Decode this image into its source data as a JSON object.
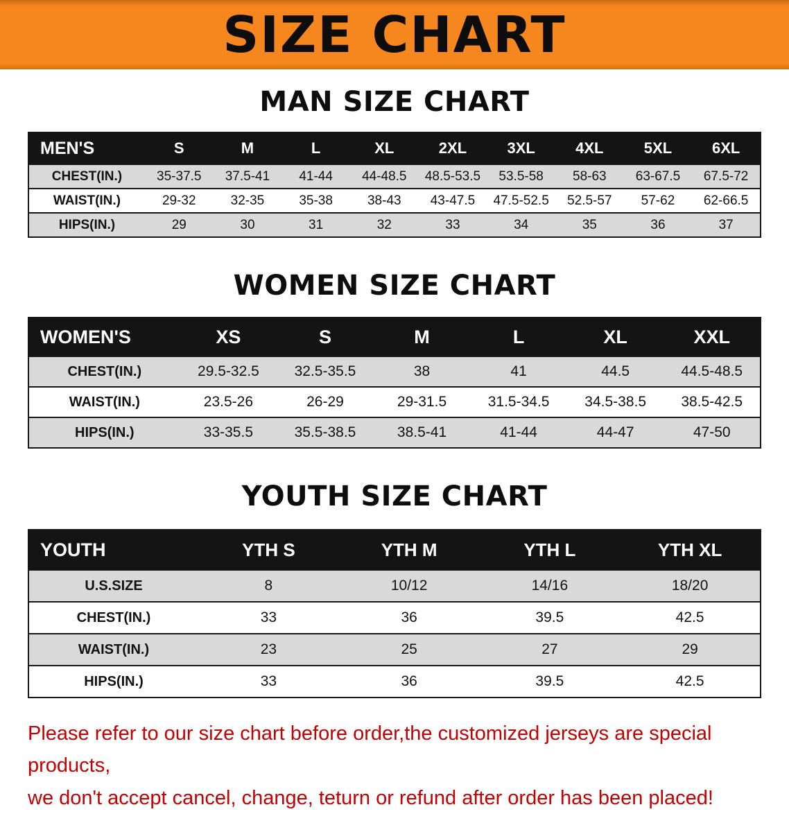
{
  "banner": {
    "title": "SIZE CHART"
  },
  "colors": {
    "banner_orange": "#F6871E",
    "header_black": "#141414",
    "row_gray": "#D9D9D9",
    "notice_red": "#C40001"
  },
  "sections": [
    {
      "heading": "MAN SIZE CHART",
      "table": {
        "header": [
          "MEN'S",
          "S",
          "M",
          "L",
          "XL",
          "2XL",
          "3XL",
          "4XL",
          "5XL",
          "6XL"
        ],
        "rows": [
          [
            "CHEST(IN.)",
            "35-37.5",
            "37.5-41",
            "41-44",
            "44-48.5",
            "48.5-53.5",
            "53.5-58",
            "58-63",
            "63-67.5",
            "67.5-72"
          ],
          [
            "WAIST(IN.)",
            "29-32",
            "32-35",
            "35-38",
            "38-43",
            "43-47.5",
            "47.5-52.5",
            "52.5-57",
            "57-62",
            "62-66.5"
          ],
          [
            "HIPS(IN.)",
            "29",
            "30",
            "31",
            "32",
            "33",
            "34",
            "35",
            "36",
            "37"
          ]
        ]
      }
    },
    {
      "heading": "WOMEN SIZE CHART",
      "table": {
        "header": [
          "WOMEN'S",
          "XS",
          "S",
          "M",
          "L",
          "XL",
          "XXL"
        ],
        "rows": [
          [
            "CHEST(IN.)",
            "29.5-32.5",
            "32.5-35.5",
            "38",
            "41",
            "44.5",
            "44.5-48.5"
          ],
          [
            "WAIST(IN.)",
            "23.5-26",
            "26-29",
            "29-31.5",
            "31.5-34.5",
            "34.5-38.5",
            "38.5-42.5"
          ],
          [
            "HIPS(IN.)",
            "33-35.5",
            "35.5-38.5",
            "38.5-41",
            "41-44",
            "44-47",
            "47-50"
          ]
        ]
      }
    },
    {
      "heading": "YOUTH SIZE CHART",
      "table": {
        "header": [
          "YOUTH",
          "YTH S",
          "YTH M",
          "YTH L",
          "YTH XL"
        ],
        "rows": [
          [
            "U.S.SIZE",
            "8",
            "10/12",
            "14/16",
            "18/20"
          ],
          [
            "CHEST(IN.)",
            "33",
            "36",
            "39.5",
            "42.5"
          ],
          [
            "WAIST(IN.)",
            "23",
            "25",
            "27",
            "29"
          ],
          [
            "HIPS(IN.)",
            "33",
            "36",
            "39.5",
            "42.5"
          ]
        ]
      }
    }
  ],
  "notice": {
    "line1": "Please refer to our size chart before order,the customized jerseys are special products,",
    "line2": "we don't accept cancel, change, teturn or refund after order has been placed!"
  }
}
